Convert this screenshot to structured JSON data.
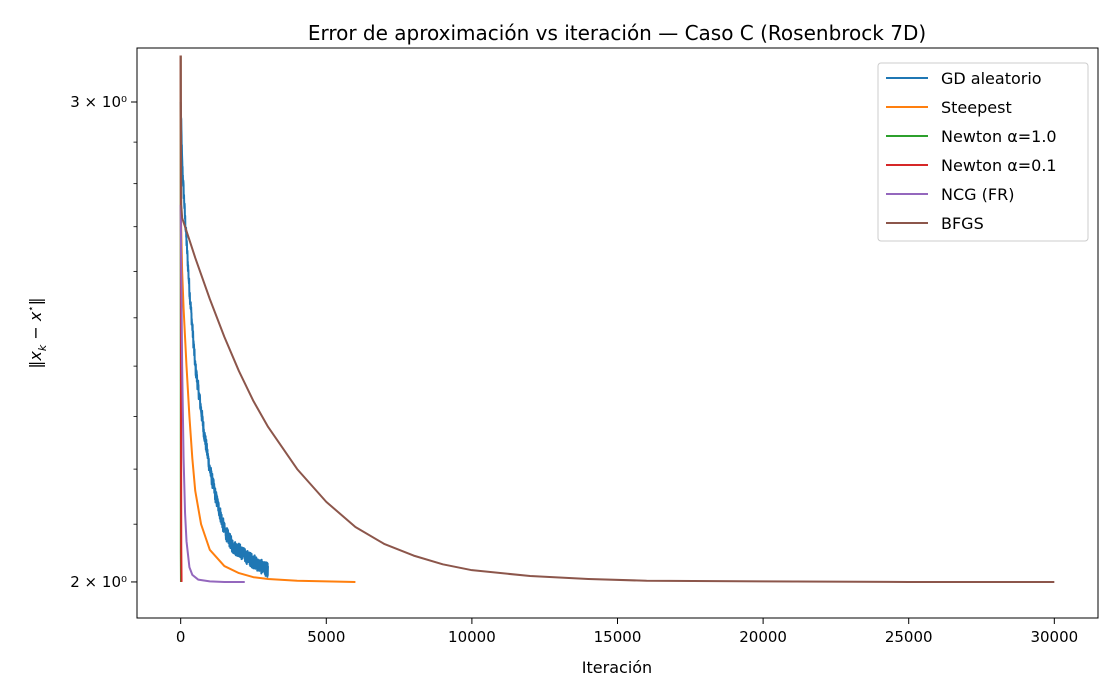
{
  "chart_data": {
    "type": "line",
    "title": "Error de aproximación vs iteración — Caso C (Rosenbrock 7D)",
    "xlabel": "Iteración",
    "ylabel": "‖x_k − x*‖",
    "yscale": "log",
    "xlim": [
      -1500,
      31500
    ],
    "ylim": [
      1.94,
      3.14
    ],
    "x_ticks": [
      0,
      5000,
      10000,
      15000,
      20000,
      25000,
      30000
    ],
    "x_tick_labels": [
      "0",
      "5000",
      "10000",
      "15000",
      "20000",
      "25000",
      "30000"
    ],
    "y_ticks": [
      2.0,
      3.0
    ],
    "y_tick_labels": [
      "2 × 10⁰",
      "3 × 10⁰"
    ],
    "grid": false,
    "legend_position": "top-right",
    "series": [
      {
        "name": "GD aleatorio",
        "color": "#1f77b4",
        "noisy": true,
        "x": [
          0,
          50,
          150,
          300,
          500,
          800,
          1000,
          1200,
          1500,
          1800,
          2000,
          2200,
          2500,
          2800,
          3000
        ],
        "y": [
          3.0,
          2.85,
          2.72,
          2.56,
          2.4,
          2.27,
          2.2,
          2.15,
          2.09,
          2.06,
          2.055,
          2.045,
          2.035,
          2.025,
          2.02
        ]
      },
      {
        "name": "Steepest",
        "color": "#ff7f0e",
        "noisy": false,
        "x": [
          0,
          50,
          100,
          200,
          300,
          400,
          500,
          700,
          1000,
          1500,
          2000,
          2500,
          3000,
          4000,
          5000,
          6000
        ],
        "y": [
          2.75,
          2.6,
          2.52,
          2.4,
          2.3,
          2.22,
          2.16,
          2.1,
          2.055,
          2.027,
          2.015,
          2.008,
          2.005,
          2.002,
          2.001,
          2.0
        ]
      },
      {
        "name": "Newton α=1.0",
        "color": "#2ca02c",
        "noisy": false,
        "x": [
          0,
          2,
          5,
          10
        ],
        "y": [
          3.12,
          2.6,
          2.05,
          2.0
        ]
      },
      {
        "name": "Newton α=0.1",
        "color": "#d62728",
        "noisy": false,
        "x": [
          0,
          5,
          10,
          20,
          30
        ],
        "y": [
          3.12,
          2.8,
          2.4,
          2.06,
          2.0
        ]
      },
      {
        "name": "NCG (FR)",
        "color": "#9467bd",
        "noisy": false,
        "x": [
          0,
          20,
          50,
          100,
          150,
          200,
          300,
          400,
          600,
          1000,
          1500,
          2200
        ],
        "y": [
          2.75,
          2.6,
          2.4,
          2.22,
          2.12,
          2.07,
          2.025,
          2.012,
          2.004,
          2.001,
          2.0,
          2.0
        ]
      },
      {
        "name": "BFGS",
        "color": "#8c564b",
        "noisy": false,
        "x": [
          0,
          10,
          20,
          50,
          100,
          300,
          500,
          1000,
          1500,
          2000,
          2500,
          3000,
          4000,
          5000,
          6000,
          7000,
          8000,
          9000,
          10000,
          12000,
          14000,
          16000,
          20000,
          25000,
          30000
        ],
        "y": [
          3.12,
          2.9,
          2.75,
          2.72,
          2.71,
          2.67,
          2.63,
          2.54,
          2.46,
          2.39,
          2.33,
          2.28,
          2.2,
          2.14,
          2.095,
          2.065,
          2.045,
          2.03,
          2.02,
          2.01,
          2.005,
          2.002,
          2.001,
          2.0,
          2.0
        ]
      }
    ]
  }
}
